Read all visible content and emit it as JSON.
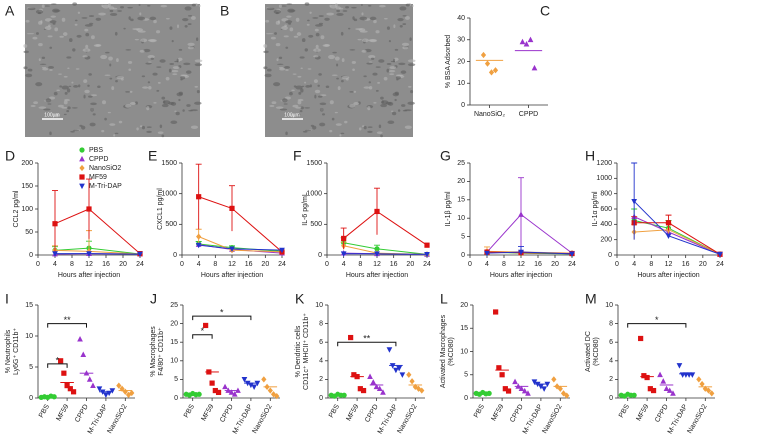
{
  "chart_data": [
    {
      "type": "image",
      "label": "A",
      "scale_bar": "100µm"
    },
    {
      "type": "image",
      "label": "B",
      "scale_bar": "100µm"
    },
    {
      "type": "dot",
      "label": "C",
      "ylabel": [
        "% BSA Adsorbed"
      ],
      "ylim": [
        0,
        40
      ],
      "yticks": [
        0,
        10,
        20,
        30,
        40
      ],
      "categories": [
        "NanoSiO₂",
        "CPPD"
      ],
      "groups": [
        {
          "color": "#f0a040",
          "marker": "diamond",
          "values": [
            23,
            19,
            15,
            16
          ],
          "mean": 20.5
        },
        {
          "color": "#9933cc",
          "marker": "triangle",
          "values": [
            29,
            28,
            30,
            17
          ],
          "mean": 25
        }
      ]
    },
    {
      "type": "line",
      "label": "D",
      "ylabel": "CCL2 pg/ml",
      "xlabel": "Hours after injection",
      "ylim": [
        0,
        200
      ],
      "yticks": [
        0,
        50,
        100,
        150,
        200
      ],
      "xlim": [
        0,
        24
      ],
      "xticks": [
        0,
        4,
        8,
        12,
        16,
        20,
        24
      ],
      "x": [
        4,
        12,
        24
      ],
      "legend": "upper right",
      "series": [
        {
          "name": "PBS",
          "color": "#33cc33",
          "marker": "circle",
          "values": [
            10,
            15,
            2
          ],
          "errors": [
            8,
            15,
            null
          ]
        },
        {
          "name": "CPPD",
          "color": "#9933cc",
          "marker": "triangle",
          "values": [
            2,
            3,
            2
          ]
        },
        {
          "name": "NanoSiO2",
          "color": "#f0a040",
          "marker": "diamond",
          "values": [
            10,
            8,
            2
          ],
          "errors": [
            10,
            45,
            null
          ]
        },
        {
          "name": "MF59",
          "color": "#dd1111",
          "marker": "square",
          "values": [
            68,
            100,
            3
          ],
          "errors": [
            72,
            65,
            null
          ]
        },
        {
          "name": "M-Tri-DAP",
          "color": "#2233cc",
          "marker": "triangle-down",
          "values": [
            3,
            3,
            2
          ]
        }
      ]
    },
    {
      "type": "line",
      "label": "E",
      "ylabel": "CXCL1 pg/ml",
      "xlabel": "Hours after injection",
      "ylim": [
        0,
        1500
      ],
      "yticks": [
        0,
        500,
        1000,
        1500
      ],
      "xlim": [
        0,
        24
      ],
      "xticks": [
        0,
        4,
        8,
        12,
        16,
        20,
        24
      ],
      "x": [
        4,
        12,
        24
      ],
      "series": [
        {
          "color": "#33cc33",
          "marker": "circle",
          "values": [
            180,
            120,
            60
          ],
          "errors": [
            40,
            30,
            null
          ]
        },
        {
          "color": "#9933cc",
          "marker": "triangle",
          "values": [
            170,
            90,
            30
          ]
        },
        {
          "color": "#f0a040",
          "marker": "diamond",
          "values": [
            300,
            80,
            50
          ],
          "errors": [
            120,
            null,
            null
          ]
        },
        {
          "color": "#dd1111",
          "marker": "square",
          "values": [
            950,
            760,
            50
          ],
          "errors": [
            530,
            370,
            null
          ]
        },
        {
          "color": "#2233cc",
          "marker": "triangle-down",
          "values": [
            160,
            100,
            80
          ]
        }
      ]
    },
    {
      "type": "line",
      "label": "F",
      "ylabel": "IL-6 pg/mL",
      "xlabel": "Hours after injection",
      "ylim": [
        0,
        1500
      ],
      "yticks": [
        0,
        500,
        1000,
        1500
      ],
      "xlim": [
        0,
        24
      ],
      "xticks": [
        0,
        4,
        8,
        12,
        16,
        20,
        24
      ],
      "x": [
        4,
        12,
        24
      ],
      "series": [
        {
          "color": "#33cc33",
          "marker": "circle",
          "values": [
            200,
            100,
            10
          ],
          "errors": [
            80,
            60,
            null
          ]
        },
        {
          "color": "#9933cc",
          "marker": "triangle",
          "values": [
            30,
            20,
            10
          ]
        },
        {
          "color": "#f0a040",
          "marker": "diamond",
          "values": [
            150,
            30,
            10
          ],
          "errors": [
            60,
            null,
            null
          ]
        },
        {
          "color": "#dd1111",
          "marker": "square",
          "values": [
            270,
            710,
            160
          ],
          "errors": [
            170,
            380,
            null
          ]
        },
        {
          "color": "#2233cc",
          "marker": "triangle-down",
          "values": [
            20,
            20,
            10
          ]
        }
      ]
    },
    {
      "type": "line",
      "label": "G",
      "ylabel": "IL-1β pg/ml",
      "xlabel": "Hours after injection",
      "ylim": [
        0,
        25
      ],
      "yticks": [
        0,
        5,
        10,
        15,
        20,
        25
      ],
      "xlim": [
        0,
        24
      ],
      "xticks": [
        0,
        4,
        8,
        12,
        16,
        20,
        24
      ],
      "x": [
        4,
        12,
        24
      ],
      "series": [
        {
          "color": "#33cc33",
          "marker": "circle",
          "values": [
            0.8,
            0.5,
            0.3
          ]
        },
        {
          "color": "#9933cc",
          "marker": "triangle",
          "values": [
            0.8,
            11,
            0.5
          ],
          "errors": [
            null,
            10,
            null
          ]
        },
        {
          "color": "#f0a040",
          "marker": "diamond",
          "values": [
            1,
            0.8,
            0.5
          ],
          "errors": [
            1.2,
            null,
            null
          ]
        },
        {
          "color": "#dd1111",
          "marker": "square",
          "values": [
            0.8,
            0.6,
            0.4
          ]
        },
        {
          "color": "#2233cc",
          "marker": "triangle-down",
          "values": [
            0.5,
            0.8,
            0.3
          ],
          "errors": [
            null,
            1.5,
            null
          ]
        }
      ]
    },
    {
      "type": "line",
      "label": "H",
      "ylabel": "IL-1α pg/ml",
      "xlabel": "Hours after injection",
      "ylim": [
        0,
        1200
      ],
      "yticks": [
        0,
        200,
        400,
        600,
        800,
        1000,
        1200
      ],
      "xlim": [
        0,
        24
      ],
      "xticks": [
        0,
        4,
        8,
        12,
        16,
        20,
        24
      ],
      "x": [
        4,
        12,
        24
      ],
      "series": [
        {
          "color": "#33cc33",
          "marker": "circle",
          "values": [
            450,
            350,
            10
          ],
          "errors": [
            150,
            100,
            null
          ]
        },
        {
          "color": "#9933cc",
          "marker": "triangle",
          "values": [
            500,
            300,
            10
          ]
        },
        {
          "color": "#f0a040",
          "marker": "diamond",
          "values": [
            300,
            330,
            10
          ],
          "errors": [
            100,
            80,
            null
          ]
        },
        {
          "color": "#dd1111",
          "marker": "square",
          "values": [
            420,
            420,
            10
          ],
          "errors": [
            80,
            100,
            null
          ]
        },
        {
          "color": "#2233cc",
          "marker": "triangle-down",
          "values": [
            700,
            250,
            10
          ],
          "errors": [
            500,
            null,
            null
          ]
        }
      ]
    },
    {
      "type": "dot",
      "label": "I",
      "ylabel": [
        "% Neutrophils",
        "Ly6G⁺ CD11b⁺"
      ],
      "ylim": [
        0,
        15
      ],
      "yticks": [
        0,
        5,
        10,
        15
      ],
      "rotate_labels": true,
      "categories": [
        "PBS",
        "MF59",
        "CPPD",
        "M-Tri-DAP",
        "NanoSiO2"
      ],
      "groups": [
        {
          "color": "#33cc33",
          "marker": "circle",
          "values": [
            0.1,
            0.2,
            0.1,
            0.3,
            0.2
          ],
          "mean": 0.2
        },
        {
          "color": "#dd1111",
          "marker": "square",
          "values": [
            6,
            4,
            2,
            1.5,
            1
          ],
          "mean": 2.5
        },
        {
          "color": "#9933cc",
          "marker": "triangle",
          "values": [
            9.5,
            7,
            4,
            3,
            2
          ],
          "mean": 4
        },
        {
          "color": "#2233cc",
          "marker": "triangle-down",
          "values": [
            1.5,
            1,
            0.5,
            0.8,
            1.2
          ],
          "mean": 1
        },
        {
          "color": "#f0a040",
          "marker": "diamond",
          "values": [
            2,
            1.5,
            1,
            0.5,
            0.8
          ],
          "mean": 1.2
        }
      ],
      "brackets": [
        {
          "span": [
            0,
            1
          ],
          "y": 5.5,
          "label": "*"
        },
        {
          "span": [
            0,
            2
          ],
          "y": 12,
          "label": "**"
        }
      ]
    },
    {
      "type": "dot",
      "label": "J",
      "ylabel": [
        "% Macrophages",
        "F4/80⁺ CD11b⁺"
      ],
      "ylim": [
        0,
        25
      ],
      "yticks": [
        0,
        5,
        10,
        15,
        20,
        25
      ],
      "rotate_labels": true,
      "categories": [
        "PBS",
        "MF59",
        "CPPD",
        "M-Tri-DAP",
        "NanoSiO2"
      ],
      "groups": [
        {
          "color": "#33cc33",
          "marker": "circle",
          "values": [
            1,
            0.8,
            1.2,
            0.9,
            1
          ],
          "mean": 1
        },
        {
          "color": "#dd1111",
          "marker": "square",
          "values": [
            19.5,
            7,
            4,
            2,
            1.5
          ],
          "mean": 7
        },
        {
          "color": "#9933cc",
          "marker": "triangle",
          "values": [
            3,
            2,
            1.5,
            1,
            2
          ],
          "mean": 2
        },
        {
          "color": "#2233cc",
          "marker": "triangle-down",
          "values": [
            5,
            4,
            3.5,
            3,
            4
          ],
          "mean": 4
        },
        {
          "color": "#f0a040",
          "marker": "diamond",
          "values": [
            5,
            3,
            2,
            1,
            0.5
          ],
          "mean": 3
        }
      ],
      "brackets": [
        {
          "span": [
            0,
            1
          ],
          "y": 17,
          "label": "*"
        },
        {
          "span": [
            0,
            3
          ],
          "y": 22,
          "label": "*"
        }
      ]
    },
    {
      "type": "dot",
      "label": "K",
      "ylabel": [
        "% Dendritic cells",
        "CD11c⁺ MHCII⁺ CD11b⁺"
      ],
      "ylim": [
        0,
        10
      ],
      "yticks": [
        0,
        2,
        4,
        6,
        8,
        10
      ],
      "rotate_labels": true,
      "categories": [
        "PBS",
        "MF59",
        "CPPD",
        "M-Tri-DAP",
        "NanoSiO2"
      ],
      "groups": [
        {
          "color": "#33cc33",
          "marker": "circle",
          "values": [
            0.3,
            0.2,
            0.4,
            0.3,
            0.3
          ],
          "mean": 0.3
        },
        {
          "color": "#dd1111",
          "marker": "square",
          "values": [
            6.5,
            2.5,
            2.3,
            1,
            0.8
          ],
          "mean": 2.3
        },
        {
          "color": "#9933cc",
          "marker": "triangle",
          "values": [
            2.3,
            1.7,
            1.2,
            1,
            0.6
          ],
          "mean": 1.4
        },
        {
          "color": "#2233cc",
          "marker": "triangle-down",
          "values": [
            5.2,
            3.5,
            3,
            3.2,
            2.5
          ],
          "mean": 3.5
        },
        {
          "color": "#f0a040",
          "marker": "diamond",
          "values": [
            2.5,
            1.8,
            1.2,
            1,
            0.8
          ],
          "mean": 1.4
        }
      ],
      "brackets": [
        {
          "span": [
            0,
            3
          ],
          "y": 6,
          "label": "**"
        }
      ]
    },
    {
      "type": "dot",
      "label": "L",
      "ylabel": [
        "Activated Macrophages",
        "(%CD80)"
      ],
      "ylim": [
        0,
        20
      ],
      "yticks": [
        0,
        5,
        10,
        15,
        20
      ],
      "rotate_labels": true,
      "categories": [
        "PBS",
        "MF59",
        "CPPD",
        "M-Tri-DAP",
        "NanoSiO2"
      ],
      "groups": [
        {
          "color": "#33cc33",
          "marker": "circle",
          "values": [
            1,
            0.8,
            1.2,
            0.9,
            1
          ],
          "mean": 1
        },
        {
          "color": "#dd1111",
          "marker": "square",
          "values": [
            18.5,
            6.5,
            5,
            2,
            1.5
          ],
          "mean": 6
        },
        {
          "color": "#9933cc",
          "marker": "triangle",
          "values": [
            3.5,
            2.5,
            2,
            1.5,
            1
          ],
          "mean": 2.5
        },
        {
          "color": "#2233cc",
          "marker": "triangle-down",
          "values": [
            3.5,
            3,
            2.5,
            2,
            3
          ],
          "mean": 3
        },
        {
          "color": "#f0a040",
          "marker": "diamond",
          "values": [
            4,
            2.5,
            2,
            1,
            0.5
          ],
          "mean": 2.5
        }
      ]
    },
    {
      "type": "dot",
      "label": "M",
      "ylabel": [
        "Activated DC",
        "(%CD80)"
      ],
      "ylim": [
        0,
        10
      ],
      "yticks": [
        0,
        2,
        4,
        6,
        8,
        10
      ],
      "rotate_labels": true,
      "categories": [
        "PBS",
        "MF59",
        "CPPD",
        "M-Tri-DAP",
        "NanoSiO2"
      ],
      "groups": [
        {
          "color": "#33cc33",
          "marker": "circle",
          "values": [
            0.3,
            0.2,
            0.4,
            0.3,
            0.3
          ],
          "mean": 0.3
        },
        {
          "color": "#dd1111",
          "marker": "square",
          "values": [
            6.4,
            2.4,
            2.2,
            1,
            0.8
          ],
          "mean": 2.3
        },
        {
          "color": "#9933cc",
          "marker": "triangle",
          "values": [
            2.5,
            1.8,
            1,
            0.8,
            0.5
          ],
          "mean": 1.4
        },
        {
          "color": "#2233cc",
          "marker": "triangle-down",
          "values": [
            3.5,
            2.5,
            2.5,
            2.5,
            2.5
          ],
          "mean": 2.6
        },
        {
          "color": "#f0a040",
          "marker": "diamond",
          "values": [
            2,
            1.5,
            1,
            0.8,
            0.5
          ],
          "mean": 1.2
        }
      ],
      "brackets": [
        {
          "span": [
            0,
            3
          ],
          "y": 8,
          "label": "*"
        }
      ]
    }
  ]
}
